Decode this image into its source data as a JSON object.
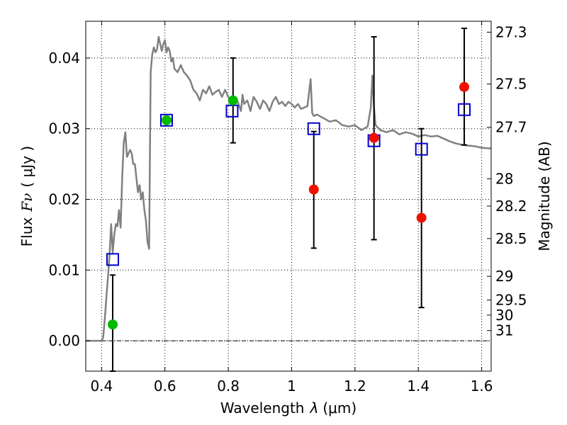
{
  "chart_data": {
    "type": "scatter",
    "xlabel_text": "Wavelength",
    "xlabel_symbol": "λ",
    "xlabel_unit": "(μm)",
    "ylabel_text": "Flux",
    "ylabel_symbol": "Fν",
    "ylabel_unit": "( μJy )",
    "y2label": "Magnitude (AB)",
    "xlim": [
      0.35,
      1.63
    ],
    "ylim": [
      -0.0043,
      0.0452
    ],
    "x_ticks": [
      0.4,
      0.6,
      0.8,
      1.0,
      1.2,
      1.4,
      1.6
    ],
    "x_tick_labels": [
      "0.4",
      "0.6",
      "0.8",
      "1",
      "1.2",
      "1.4",
      "1.6"
    ],
    "y_ticks": [
      0.0,
      0.01,
      0.02,
      0.03,
      0.04
    ],
    "y_tick_labels": [
      "0.00",
      "0.01",
      "0.02",
      "0.03",
      "0.04"
    ],
    "right_ticks": [
      {
        "label": "27.3",
        "mag": 27.3
      },
      {
        "label": "27.5",
        "mag": 27.5
      },
      {
        "label": "27.7",
        "mag": 27.7
      },
      {
        "label": "28",
        "mag": 28.0
      },
      {
        "label": "28.2",
        "mag": 28.2
      },
      {
        "label": "28.5",
        "mag": 28.5
      },
      {
        "label": "29",
        "mag": 29.0
      },
      {
        "label": "29.5",
        "mag": 29.5
      },
      {
        "label": "30",
        "mag": 30.0
      },
      {
        "label": "31",
        "mag": 31.0
      }
    ],
    "grid": true,
    "zero_line": true,
    "colors": {
      "model": "#808080",
      "model_points": "#0000cc",
      "optical": "#00bb00",
      "nir": "#ee1100",
      "errorbar": "#000000"
    },
    "series": [
      {
        "kind": "model_spectrum",
        "points": [
          [
            0.35,
            0.0
          ],
          [
            0.4,
            0.0
          ],
          [
            0.405,
            0.0005
          ],
          [
            0.41,
            0.003
          ],
          [
            0.415,
            0.006
          ],
          [
            0.42,
            0.009
          ],
          [
            0.425,
            0.012
          ],
          [
            0.43,
            0.0165
          ],
          [
            0.435,
            0.0125
          ],
          [
            0.44,
            0.015
          ],
          [
            0.445,
            0.0165
          ],
          [
            0.45,
            0.0162
          ],
          [
            0.455,
            0.0185
          ],
          [
            0.46,
            0.016
          ],
          [
            0.465,
            0.023
          ],
          [
            0.47,
            0.028
          ],
          [
            0.475,
            0.0295
          ],
          [
            0.48,
            0.026
          ],
          [
            0.485,
            0.0265
          ],
          [
            0.49,
            0.027
          ],
          [
            0.495,
            0.0265
          ],
          [
            0.5,
            0.025
          ],
          [
            0.505,
            0.025
          ],
          [
            0.51,
            0.023
          ],
          [
            0.515,
            0.021
          ],
          [
            0.52,
            0.022
          ],
          [
            0.525,
            0.02
          ],
          [
            0.53,
            0.021
          ],
          [
            0.535,
            0.0185
          ],
          [
            0.54,
            0.017
          ],
          [
            0.545,
            0.014
          ],
          [
            0.55,
            0.013
          ],
          [
            0.555,
            0.038
          ],
          [
            0.56,
            0.0405
          ],
          [
            0.565,
            0.0415
          ],
          [
            0.57,
            0.0408
          ],
          [
            0.575,
            0.0412
          ],
          [
            0.58,
            0.043
          ],
          [
            0.585,
            0.042
          ],
          [
            0.59,
            0.041
          ],
          [
            0.595,
            0.042
          ],
          [
            0.6,
            0.0425
          ],
          [
            0.605,
            0.0408
          ],
          [
            0.61,
            0.0415
          ],
          [
            0.615,
            0.041
          ],
          [
            0.62,
            0.0395
          ],
          [
            0.625,
            0.04
          ],
          [
            0.63,
            0.0385
          ],
          [
            0.64,
            0.038
          ],
          [
            0.65,
            0.039
          ],
          [
            0.66,
            0.038
          ],
          [
            0.67,
            0.0375
          ],
          [
            0.68,
            0.0368
          ],
          [
            0.69,
            0.0355
          ],
          [
            0.7,
            0.035
          ],
          [
            0.71,
            0.034
          ],
          [
            0.72,
            0.0355
          ],
          [
            0.73,
            0.035
          ],
          [
            0.74,
            0.036
          ],
          [
            0.75,
            0.0348
          ],
          [
            0.76,
            0.0352
          ],
          [
            0.77,
            0.0355
          ],
          [
            0.78,
            0.0345
          ],
          [
            0.79,
            0.0355
          ],
          [
            0.8,
            0.0345
          ],
          [
            0.81,
            0.0335
          ],
          [
            0.82,
            0.034
          ],
          [
            0.83,
            0.0338
          ],
          [
            0.84,
            0.0325
          ],
          [
            0.845,
            0.0348
          ],
          [
            0.85,
            0.0335
          ],
          [
            0.86,
            0.034
          ],
          [
            0.87,
            0.0325
          ],
          [
            0.88,
            0.0345
          ],
          [
            0.89,
            0.0338
          ],
          [
            0.9,
            0.0328
          ],
          [
            0.91,
            0.034
          ],
          [
            0.92,
            0.0335
          ],
          [
            0.93,
            0.0325
          ],
          [
            0.94,
            0.0338
          ],
          [
            0.95,
            0.0345
          ],
          [
            0.96,
            0.0335
          ],
          [
            0.97,
            0.0338
          ],
          [
            0.98,
            0.0332
          ],
          [
            0.99,
            0.0338
          ],
          [
            1.0,
            0.0335
          ],
          [
            1.01,
            0.033
          ],
          [
            1.02,
            0.0335
          ],
          [
            1.03,
            0.0328
          ],
          [
            1.04,
            0.033
          ],
          [
            1.05,
            0.0332
          ],
          [
            1.06,
            0.037
          ],
          [
            1.065,
            0.0322
          ],
          [
            1.07,
            0.0318
          ],
          [
            1.08,
            0.032
          ],
          [
            1.1,
            0.0315
          ],
          [
            1.12,
            0.031
          ],
          [
            1.14,
            0.0312
          ],
          [
            1.16,
            0.0305
          ],
          [
            1.18,
            0.0303
          ],
          [
            1.2,
            0.0305
          ],
          [
            1.22,
            0.0298
          ],
          [
            1.24,
            0.0303
          ],
          [
            1.25,
            0.033
          ],
          [
            1.255,
            0.0375
          ],
          [
            1.26,
            0.033
          ],
          [
            1.265,
            0.0305
          ],
          [
            1.28,
            0.0298
          ],
          [
            1.3,
            0.0295
          ],
          [
            1.32,
            0.0298
          ],
          [
            1.34,
            0.0292
          ],
          [
            1.36,
            0.0295
          ],
          [
            1.38,
            0.0293
          ],
          [
            1.4,
            0.0289
          ],
          [
            1.42,
            0.0291
          ],
          [
            1.44,
            0.0289
          ],
          [
            1.46,
            0.029
          ],
          [
            1.48,
            0.0286
          ],
          [
            1.5,
            0.0282
          ],
          [
            1.52,
            0.0279
          ],
          [
            1.54,
            0.0277
          ],
          [
            1.56,
            0.0276
          ],
          [
            1.58,
            0.0275
          ],
          [
            1.6,
            0.0273
          ],
          [
            1.63,
            0.0272
          ]
        ]
      },
      {
        "kind": "model_points",
        "points": [
          [
            0.435,
            0.0115
          ],
          [
            0.605,
            0.0312
          ],
          [
            0.812,
            0.0325
          ],
          [
            1.07,
            0.03
          ],
          [
            1.26,
            0.0283
          ],
          [
            1.41,
            0.0271
          ],
          [
            1.545,
            0.0327
          ]
        ]
      },
      {
        "kind": "optical_detections",
        "points": [
          [
            0.435,
            0.0023
          ],
          [
            0.605,
            0.0312
          ],
          [
            0.815,
            0.034
          ]
        ],
        "errors": [
          [
            0.435,
            -0.0043,
            0.0093
          ],
          [
            0.815,
            0.028,
            0.04
          ]
        ]
      },
      {
        "kind": "nir_detections",
        "points": [
          [
            1.07,
            0.0214
          ],
          [
            1.26,
            0.0287
          ],
          [
            1.41,
            0.0174
          ],
          [
            1.545,
            0.0359
          ]
        ],
        "errors": [
          [
            1.07,
            0.0131,
            0.0296
          ],
          [
            1.26,
            0.0143,
            0.043
          ],
          [
            1.41,
            0.0047,
            0.03
          ],
          [
            1.545,
            0.0277,
            0.0442
          ]
        ]
      }
    ]
  }
}
